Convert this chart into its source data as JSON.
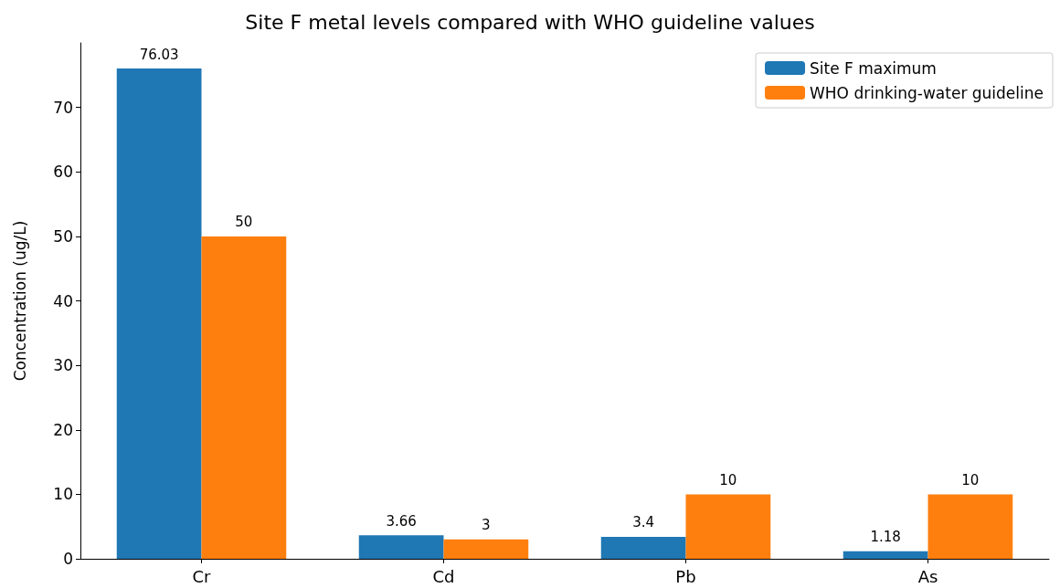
{
  "chart_data": {
    "type": "bar",
    "title": "Site F metal levels compared with WHO guideline values",
    "ylabel": "Concentration (ug/L)",
    "categories": [
      "Cr",
      "Cd",
      "Pb",
      "As"
    ],
    "series": [
      {
        "name": "Site F maximum",
        "color": "#1f77b4",
        "values": [
          76.03,
          3.66,
          3.4,
          1.18
        ]
      },
      {
        "name": "WHO drinking-water guideline",
        "color": "#ff7f0e",
        "values": [
          50,
          3,
          10,
          10
        ]
      }
    ],
    "ylim": [
      0,
      80
    ],
    "yticks": [
      0,
      10,
      20,
      30,
      40,
      50,
      60,
      70
    ],
    "grid": false,
    "legend": "top right",
    "data_labels": true
  }
}
